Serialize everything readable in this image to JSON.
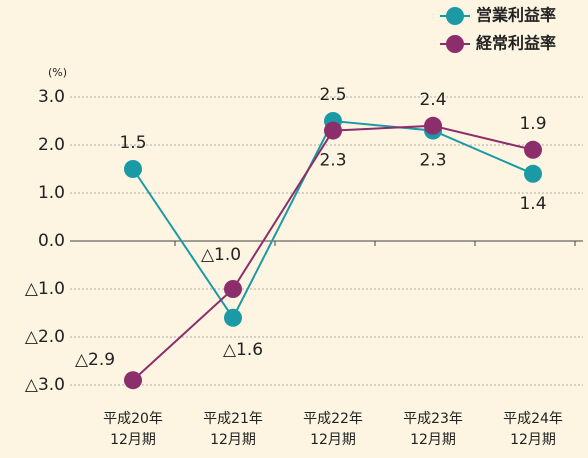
{
  "chart_data": {
    "type": "line",
    "unit": "(%)",
    "categories": [
      "平成20年\n12月期",
      "平成21年\n12月期",
      "平成22年\n12月期",
      "平成23年\n12月期",
      "平成24年\n12月期"
    ],
    "series": [
      {
        "name": "営業利益率",
        "color": "#1b9aa5",
        "values": [
          1.5,
          -1.6,
          2.5,
          2.3,
          1.4
        ],
        "value_labels": [
          "1.5",
          "△1.6",
          "2.5",
          "2.3",
          "1.4"
        ]
      },
      {
        "name": "経常利益率",
        "color": "#8c2e6c",
        "values": [
          -2.9,
          -1.0,
          2.3,
          2.4,
          1.9
        ],
        "value_labels": [
          "△2.9",
          "△1.0",
          "2.3",
          "2.4",
          "1.9"
        ]
      }
    ],
    "ylim": [
      -3,
      3
    ],
    "yticks": [
      {
        "value": 3,
        "label": "3.0"
      },
      {
        "value": 2,
        "label": "2.0"
      },
      {
        "value": 1,
        "label": "1.0"
      },
      {
        "value": 0,
        "label": "0.0"
      },
      {
        "value": -1,
        "label": "△1.0"
      },
      {
        "value": -2,
        "label": "△2.0"
      },
      {
        "value": -3,
        "label": "△3.0"
      }
    ],
    "grid": true
  }
}
